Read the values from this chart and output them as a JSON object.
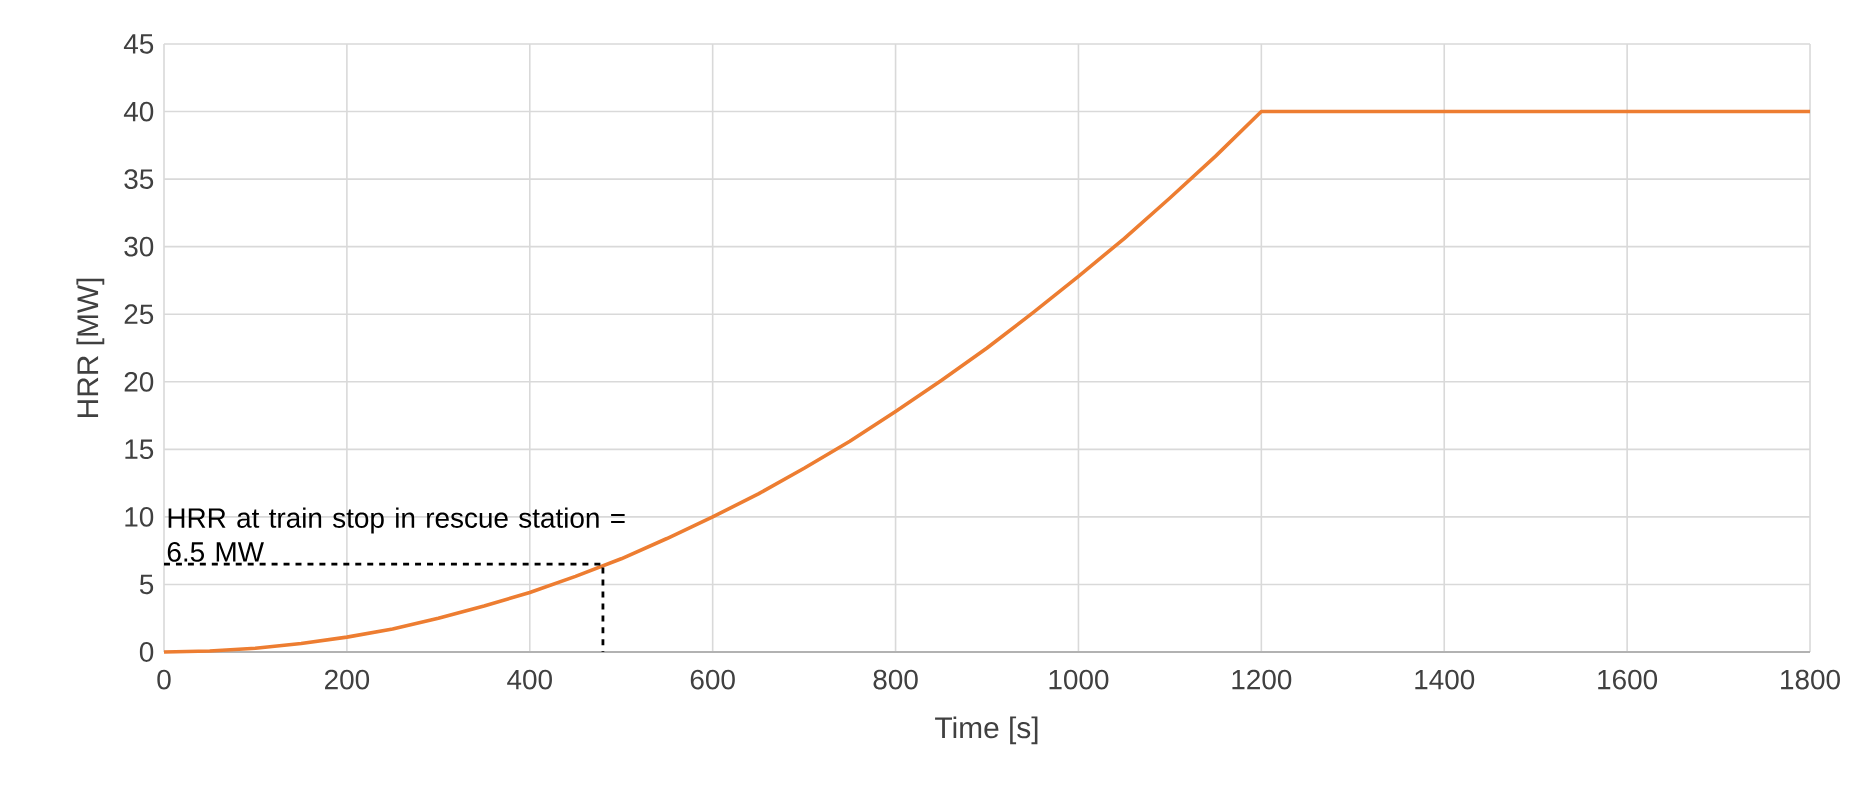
{
  "chart_data": {
    "type": "line",
    "xlabel": "Time [s]",
    "ylabel": "HRR [MW]",
    "x": [
      0,
      50,
      100,
      150,
      200,
      250,
      300,
      350,
      400,
      450,
      500,
      550,
      600,
      650,
      700,
      750,
      800,
      850,
      900,
      950,
      1000,
      1050,
      1100,
      1150,
      1200,
      1800
    ],
    "series": [
      {
        "color": "#ed7d31",
        "values": [
          0,
          0.07,
          0.28,
          0.63,
          1.1,
          1.7,
          2.5,
          3.4,
          4.4,
          5.6,
          6.9,
          8.4,
          10,
          11.7,
          13.6,
          15.6,
          17.8,
          20.1,
          22.5,
          25.1,
          27.8,
          30.6,
          33.6,
          36.7,
          40,
          40
        ]
      }
    ],
    "xlim": [
      0,
      1800
    ],
    "ylim": [
      0,
      45
    ],
    "xticks": [
      0,
      200,
      400,
      600,
      800,
      1000,
      1200,
      1400,
      1600,
      1800
    ],
    "yticks": [
      0,
      5,
      10,
      15,
      20,
      25,
      30,
      35,
      40,
      45
    ],
    "grid": true,
    "marker": "none",
    "line_style": "solid",
    "annotations": [
      {
        "text": "HRR at train stop in rescue station = 6.5 MW",
        "x": 480,
        "y": 6.5
      }
    ]
  }
}
